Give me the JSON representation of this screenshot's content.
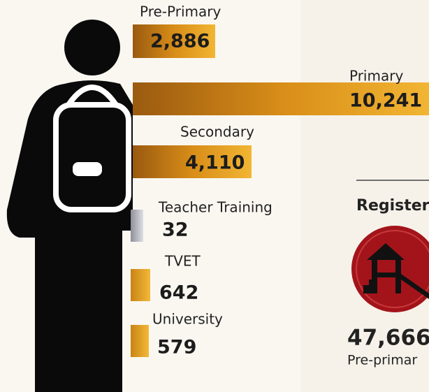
{
  "items": [
    {
      "label": "Pre-Primary",
      "value": "2,886"
    },
    {
      "label": "Primary",
      "value": "10,241"
    },
    {
      "label": "Secondary",
      "value": "4,110"
    },
    {
      "label": "Teacher Training",
      "value": "32"
    },
    {
      "label": "TVET",
      "value": "642"
    },
    {
      "label": "University",
      "value": "579"
    }
  ],
  "side_panel": {
    "heading": "Register",
    "value": "47,666",
    "caption": "Pre-primar"
  }
}
